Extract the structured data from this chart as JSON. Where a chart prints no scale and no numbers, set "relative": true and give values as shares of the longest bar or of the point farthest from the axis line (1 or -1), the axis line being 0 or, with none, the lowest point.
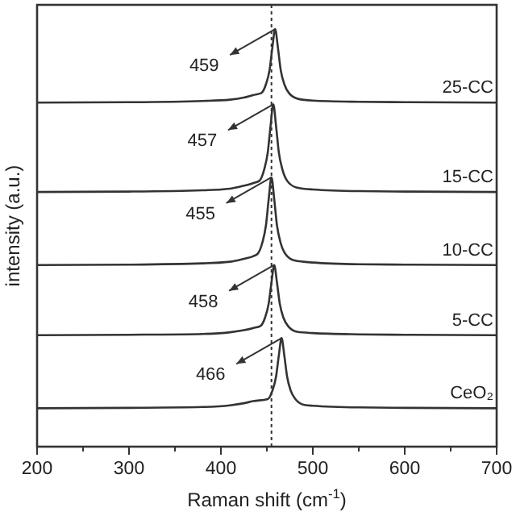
{
  "chart_data": {
    "type": "line",
    "relative": true,
    "xlabel": "Raman shift (cm$^{-1}$)",
    "ylabel": "intensity (a.u.)",
    "xlim": [
      200,
      700
    ],
    "xticks": [
      200,
      {
        "value": 250,
        "label": null
      },
      300,
      {
        "value": 350,
        "label": null
      },
      400,
      {
        "value": 450,
        "label": null
      },
      500,
      {
        "value": 550,
        "label": null
      },
      600,
      {
        "value": 650,
        "label": null
      },
      700
    ],
    "legend": false,
    "grid": false,
    "marker": "none",
    "line_style": "solid",
    "ref_lines": [
      {
        "axis": "x",
        "value": 455,
        "label": null,
        "color": "#333333",
        "line_style": "dotted"
      }
    ],
    "annotations": [
      {
        "text": "459",
        "x": 459,
        "y": 1.0
      },
      {
        "text": "457",
        "x": 457,
        "y": 0.82
      },
      {
        "text": "455",
        "x": 455,
        "y": 0.645
      },
      {
        "text": "458",
        "x": 458,
        "y": 0.435
      },
      {
        "text": "466",
        "x": 466,
        "y": 0.26
      }
    ],
    "series": [
      {
        "name": "25-CC",
        "color": "#333333",
        "x": [
          200,
          300,
          380,
          410,
          425,
          435,
          444,
          449,
          453,
          456,
          459,
          462,
          465,
          469,
          474,
          484,
          500,
          550,
          600,
          700
        ],
        "values": [
          0.824,
          0.825,
          0.828,
          0.831,
          0.836,
          0.842,
          0.847,
          0.868,
          0.903,
          0.956,
          1.0,
          0.956,
          0.903,
          0.868,
          0.847,
          0.833,
          0.829,
          0.826,
          0.825,
          0.824
        ]
      },
      {
        "name": "15-CC",
        "color": "#333333",
        "x": [
          200,
          300,
          380,
          410,
          425,
          435,
          442,
          447,
          451,
          454,
          457,
          460,
          463,
          467,
          472,
          482,
          500,
          550,
          600,
          700
        ],
        "values": [
          0.61,
          0.611,
          0.614,
          0.618,
          0.625,
          0.631,
          0.637,
          0.663,
          0.705,
          0.768,
          0.82,
          0.768,
          0.705,
          0.663,
          0.637,
          0.621,
          0.616,
          0.612,
          0.611,
          0.61
        ]
      },
      {
        "name": "10-CC",
        "color": "#333333",
        "x": [
          200,
          300,
          380,
          410,
          425,
          435,
          440,
          445,
          449,
          452,
          455,
          458,
          461,
          465,
          470,
          480,
          500,
          550,
          600,
          700
        ],
        "values": [
          0.435,
          0.436,
          0.439,
          0.443,
          0.45,
          0.456,
          0.462,
          0.488,
          0.53,
          0.593,
          0.645,
          0.593,
          0.53,
          0.488,
          0.462,
          0.446,
          0.441,
          0.437,
          0.436,
          0.435
        ]
      },
      {
        "name": "5-CC",
        "color": "#333333",
        "x": [
          200,
          300,
          380,
          410,
          425,
          435,
          443,
          448,
          452,
          455,
          458,
          461,
          464,
          468,
          473,
          483,
          500,
          550,
          600,
          700
        ],
        "values": [
          0.267,
          0.268,
          0.27,
          0.274,
          0.279,
          0.284,
          0.289,
          0.309,
          0.343,
          0.393,
          0.435,
          0.393,
          0.343,
          0.309,
          0.289,
          0.275,
          0.272,
          0.269,
          0.268,
          0.267
        ]
      },
      {
        "name": "CeO₂",
        "color": "#333333",
        "x": [
          200,
          300,
          380,
          410,
          425,
          435,
          451,
          456,
          460,
          463,
          466,
          469,
          472,
          476,
          481,
          491,
          500,
          550,
          600,
          700
        ],
        "values": [
          0.092,
          0.093,
          0.095,
          0.099,
          0.104,
          0.109,
          0.114,
          0.134,
          0.168,
          0.218,
          0.26,
          0.218,
          0.168,
          0.134,
          0.114,
          0.1,
          0.098,
          0.094,
          0.093,
          0.092
        ]
      }
    ]
  }
}
